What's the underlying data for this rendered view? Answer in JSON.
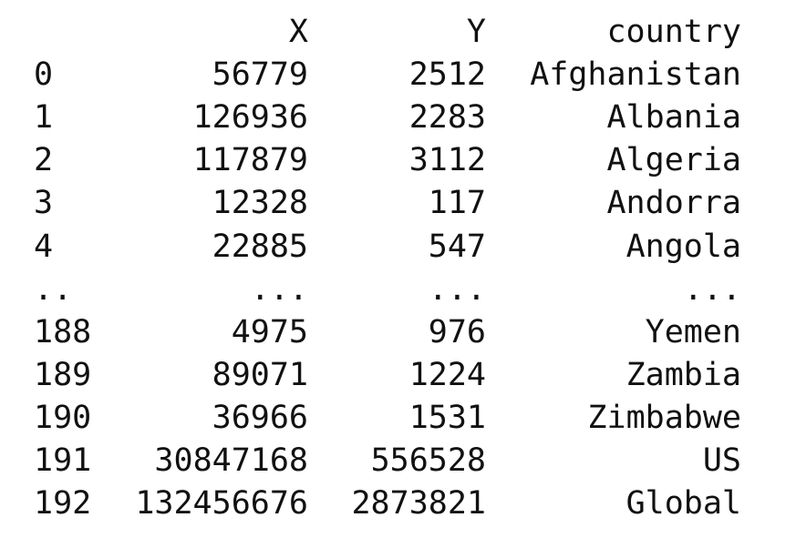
{
  "table": {
    "columns": [
      "X",
      "Y",
      "country"
    ],
    "rows": [
      [
        0,
        56779,
        2512,
        "Afghanistan"
      ],
      [
        1,
        126936,
        2283,
        "Albania"
      ],
      [
        2,
        117879,
        3112,
        "Algeria"
      ],
      [
        3,
        12328,
        117,
        "Andorra"
      ],
      [
        4,
        22885,
        547,
        "Angola"
      ],
      [
        "..",
        "...",
        "...",
        "..."
      ],
      [
        188,
        4975,
        976,
        "Yemen"
      ],
      [
        189,
        89071,
        1224,
        "Zambia"
      ],
      [
        190,
        36966,
        1531,
        "Zimbabwe"
      ],
      [
        191,
        30847168,
        556528,
        "US"
      ],
      [
        192,
        132456676,
        2873821,
        "Global"
      ]
    ]
  }
}
